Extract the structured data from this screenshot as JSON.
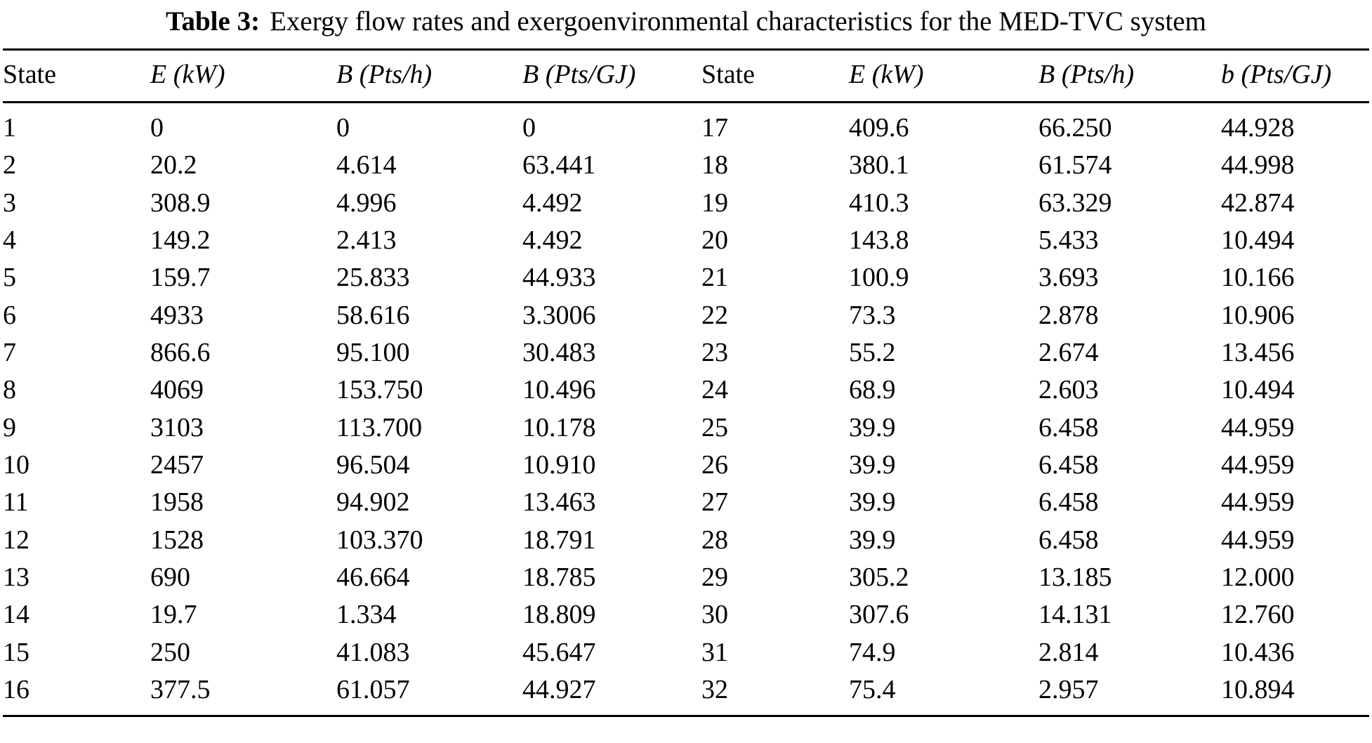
{
  "title": {
    "label": "Table 3:",
    "text": "Exergy flow rates and exergoenvironmental characteristics for the MED-TVC system"
  },
  "table": {
    "headers": [
      {
        "text": "State",
        "italic": false
      },
      {
        "text": "E (kW)",
        "italic": true
      },
      {
        "text": "B (Pts/h)",
        "italic": true
      },
      {
        "text": "B (Pts/GJ)",
        "italic": true
      },
      {
        "text": "State",
        "italic": false
      },
      {
        "text": "E (kW)",
        "italic": true
      },
      {
        "text": "B (Pts/h)",
        "italic": true
      },
      {
        "text": "b (Pts/GJ)",
        "italic": true
      }
    ],
    "rows": [
      [
        "1",
        "0",
        "0",
        "0",
        "17",
        "409.6",
        "66.250",
        "44.928"
      ],
      [
        "2",
        "20.2",
        "4.614",
        "63.441",
        "18",
        "380.1",
        "61.574",
        "44.998"
      ],
      [
        "3",
        "308.9",
        "4.996",
        "4.492",
        "19",
        "410.3",
        "63.329",
        "42.874"
      ],
      [
        "4",
        "149.2",
        "2.413",
        "4.492",
        "20",
        "143.8",
        "5.433",
        "10.494"
      ],
      [
        "5",
        "159.7",
        "25.833",
        "44.933",
        "21",
        "100.9",
        "3.693",
        "10.166"
      ],
      [
        "6",
        "4933",
        "58.616",
        "3.3006",
        "22",
        "73.3",
        "2.878",
        "10.906"
      ],
      [
        "7",
        "866.6",
        "95.100",
        "30.483",
        "23",
        "55.2",
        "2.674",
        "13.456"
      ],
      [
        "8",
        "4069",
        "153.750",
        "10.496",
        "24",
        "68.9",
        "2.603",
        "10.494"
      ],
      [
        "9",
        "3103",
        "113.700",
        "10.178",
        "25",
        "39.9",
        "6.458",
        "44.959"
      ],
      [
        "10",
        "2457",
        "96.504",
        "10.910",
        "26",
        "39.9",
        "6.458",
        "44.959"
      ],
      [
        "11",
        "1958",
        "94.902",
        "13.463",
        "27",
        "39.9",
        "6.458",
        "44.959"
      ],
      [
        "12",
        "1528",
        "103.370",
        "18.791",
        "28",
        "39.9",
        "6.458",
        "44.959"
      ],
      [
        "13",
        "690",
        "46.664",
        "18.785",
        "29",
        "305.2",
        "13.185",
        "12.000"
      ],
      [
        "14",
        "19.7",
        "1.334",
        "18.809",
        "30",
        "307.6",
        "14.131",
        "12.760"
      ],
      [
        "15",
        "250",
        "41.083",
        "45.647",
        "31",
        "74.9",
        "2.814",
        "10.436"
      ],
      [
        "16",
        "377.5",
        "61.057",
        "44.927",
        "32",
        "75.4",
        "2.957",
        "10.894"
      ]
    ]
  }
}
